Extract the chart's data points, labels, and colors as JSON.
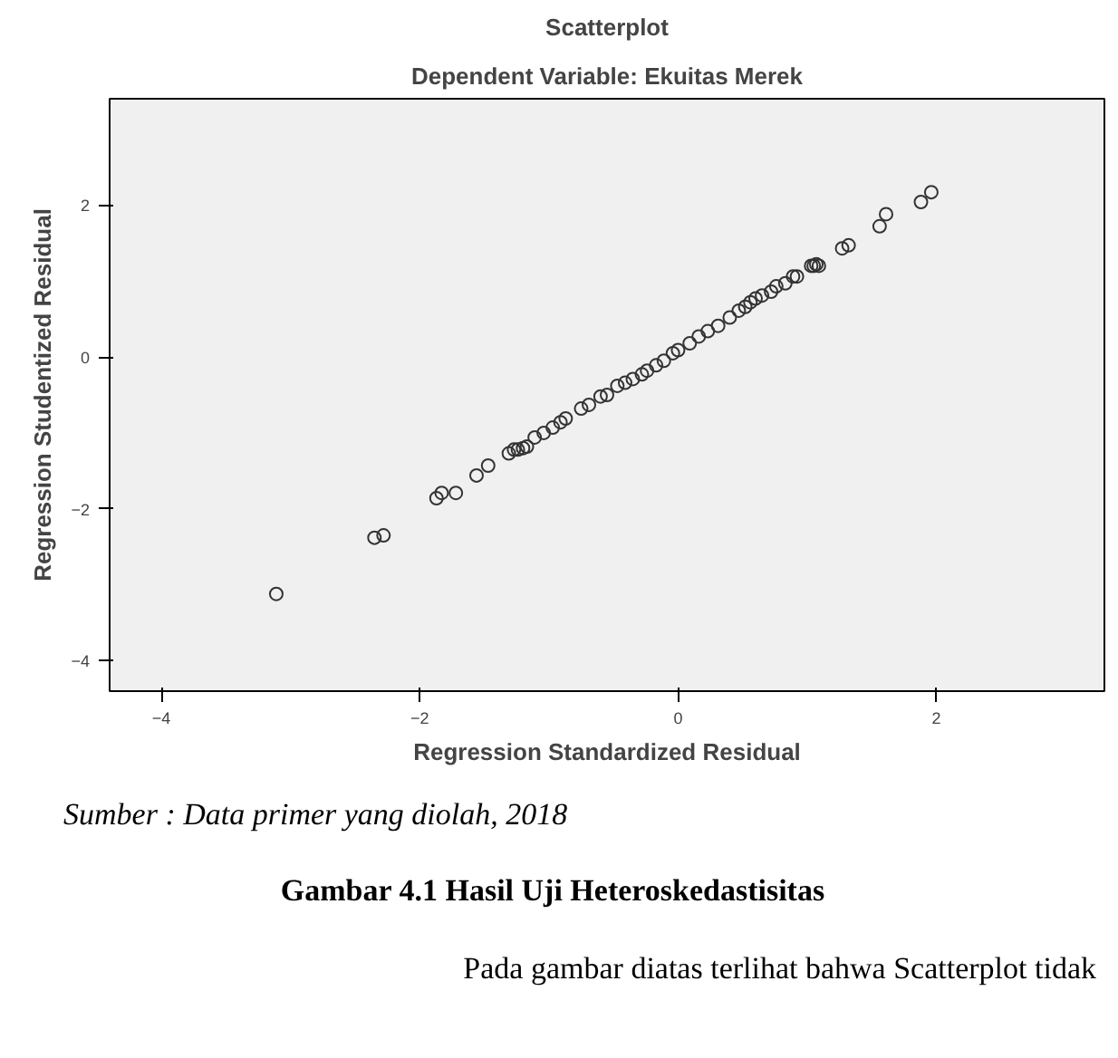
{
  "chart_data": {
    "type": "scatter",
    "title": "Scatterplot",
    "subtitle": "Dependent Variable: Ekuitas Merek",
    "xlabel": "Regression Standardized Residual",
    "ylabel": "Regression Studentized Residual",
    "x": [
      -3.11,
      -2.35,
      -2.28,
      -1.87,
      -1.83,
      -1.72,
      -1.56,
      -1.47,
      -1.31,
      -1.27,
      -1.2,
      -1.24,
      -1.17,
      -1.11,
      -1.04,
      -0.97,
      -0.91,
      -0.87,
      -0.75,
      -0.69,
      -0.6,
      -0.55,
      -0.47,
      -0.41,
      -0.35,
      -0.28,
      -0.24,
      -0.17,
      -0.11,
      -0.04,
      0.0,
      0.09,
      0.16,
      0.23,
      0.31,
      0.4,
      0.47,
      0.52,
      0.56,
      0.6,
      0.65,
      0.72,
      0.76,
      0.83,
      0.92,
      1.03,
      1.07,
      0.89,
      1.05,
      1.09,
      1.27,
      1.32,
      1.56,
      1.61,
      1.88,
      1.96
    ],
    "values": [
      -3.12,
      -2.38,
      -2.35,
      -1.86,
      -1.79,
      -1.79,
      -1.56,
      -1.43,
      -1.27,
      -1.22,
      -1.2,
      -1.22,
      -1.18,
      -1.06,
      -1.0,
      -0.93,
      -0.86,
      -0.81,
      -0.68,
      -0.63,
      -0.52,
      -0.5,
      -0.38,
      -0.34,
      -0.29,
      -0.23,
      -0.18,
      -0.11,
      -0.05,
      0.05,
      0.09,
      0.18,
      0.27,
      0.34,
      0.41,
      0.52,
      0.61,
      0.66,
      0.72,
      0.77,
      0.81,
      0.86,
      0.93,
      0.97,
      1.06,
      1.2,
      1.22,
      1.06,
      1.2,
      1.2,
      1.43,
      1.47,
      1.72,
      1.88,
      2.04,
      2.17
    ],
    "color": "#333333",
    "marker": "circle",
    "xlim": [
      -4.4,
      3.3
    ],
    "ylim": [
      -4.4,
      3.4
    ],
    "xticks": [
      -4,
      -2,
      0,
      2
    ],
    "yticks": [
      -4,
      -2,
      0,
      2
    ],
    "grid": false,
    "annotations": [
      "Sumber : Data primer yang diolah, 2018",
      "Gambar 4.1 Hasil Uji Heteroskedastisitas",
      "Pada gambar diatas terlihat bahwa Scatterplot tidak"
    ]
  }
}
